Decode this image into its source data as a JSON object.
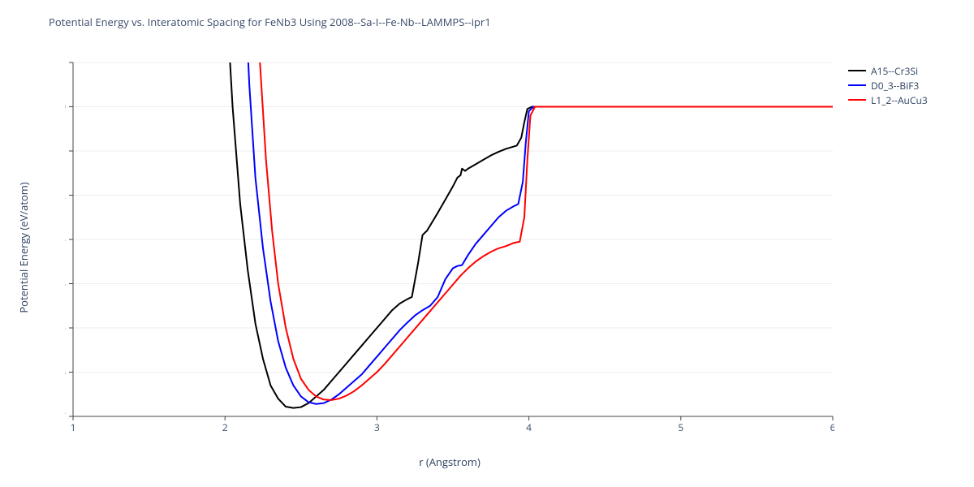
{
  "chart": {
    "title": "Potential Energy vs. Interatomic Spacing for FeNb3 Using 2008--Sa-I--Fe-Nb--LAMMPS--ipr1",
    "type": "line",
    "background_color": "#ffffff",
    "grid_color": "#eeeeee",
    "axis_line_color": "#444444",
    "title_fontsize": 13,
    "title_color": "#3a4c6b",
    "x": {
      "label": "r (Angstrom)",
      "min": 1,
      "max": 6,
      "tick_step": 1
    },
    "y": {
      "label": "Potential Energy (eV/atom)",
      "min": -7,
      "max": 1,
      "tick_step": 1
    },
    "series": [
      {
        "name": "A15--Cr3Si",
        "color": "#000000",
        "line_width": 2,
        "points": [
          [
            1.95,
            7.0
          ],
          [
            2.0,
            3.0
          ],
          [
            2.05,
            0.0
          ],
          [
            2.1,
            -2.2
          ],
          [
            2.15,
            -3.7
          ],
          [
            2.2,
            -4.9
          ],
          [
            2.25,
            -5.7
          ],
          [
            2.3,
            -6.3
          ],
          [
            2.35,
            -6.6
          ],
          [
            2.4,
            -6.78
          ],
          [
            2.45,
            -6.81
          ],
          [
            2.5,
            -6.79
          ],
          [
            2.55,
            -6.7
          ],
          [
            2.6,
            -6.55
          ],
          [
            2.65,
            -6.4
          ],
          [
            2.7,
            -6.2
          ],
          [
            2.75,
            -6.0
          ],
          [
            2.8,
            -5.8
          ],
          [
            2.85,
            -5.6
          ],
          [
            2.9,
            -5.4
          ],
          [
            2.95,
            -5.2
          ],
          [
            3.0,
            -5.0
          ],
          [
            3.05,
            -4.8
          ],
          [
            3.1,
            -4.6
          ],
          [
            3.15,
            -4.45
          ],
          [
            3.2,
            -4.35
          ],
          [
            3.23,
            -4.3
          ],
          [
            3.27,
            -3.55
          ],
          [
            3.3,
            -2.9
          ],
          [
            3.33,
            -2.8
          ],
          [
            3.4,
            -2.4
          ],
          [
            3.45,
            -2.1
          ],
          [
            3.5,
            -1.8
          ],
          [
            3.53,
            -1.6
          ],
          [
            3.55,
            -1.55
          ],
          [
            3.56,
            -1.4
          ],
          [
            3.58,
            -1.45
          ],
          [
            3.6,
            -1.4
          ],
          [
            3.65,
            -1.3
          ],
          [
            3.7,
            -1.2
          ],
          [
            3.75,
            -1.1
          ],
          [
            3.8,
            -1.02
          ],
          [
            3.85,
            -0.95
          ],
          [
            3.9,
            -0.9
          ],
          [
            3.92,
            -0.88
          ],
          [
            3.95,
            -0.7
          ],
          [
            3.97,
            -0.35
          ],
          [
            3.99,
            -0.05
          ],
          [
            4.02,
            0.0
          ],
          [
            4.2,
            0.0
          ],
          [
            4.5,
            0.0
          ],
          [
            5.0,
            0.0
          ],
          [
            5.5,
            0.0
          ],
          [
            6.0,
            0.0
          ]
        ]
      },
      {
        "name": "D0_3--BiF3",
        "color": "#0000ff",
        "line_width": 2,
        "points": [
          [
            2.08,
            7.0
          ],
          [
            2.12,
            3.5
          ],
          [
            2.16,
            0.5
          ],
          [
            2.2,
            -1.6
          ],
          [
            2.25,
            -3.2
          ],
          [
            2.3,
            -4.4
          ],
          [
            2.35,
            -5.3
          ],
          [
            2.4,
            -5.9
          ],
          [
            2.45,
            -6.3
          ],
          [
            2.5,
            -6.55
          ],
          [
            2.55,
            -6.68
          ],
          [
            2.6,
            -6.72
          ],
          [
            2.65,
            -6.7
          ],
          [
            2.7,
            -6.62
          ],
          [
            2.75,
            -6.5
          ],
          [
            2.8,
            -6.35
          ],
          [
            2.85,
            -6.2
          ],
          [
            2.9,
            -6.05
          ],
          [
            2.95,
            -5.85
          ],
          [
            3.0,
            -5.65
          ],
          [
            3.05,
            -5.45
          ],
          [
            3.1,
            -5.25
          ],
          [
            3.15,
            -5.05
          ],
          [
            3.2,
            -4.88
          ],
          [
            3.25,
            -4.72
          ],
          [
            3.3,
            -4.6
          ],
          [
            3.35,
            -4.5
          ],
          [
            3.4,
            -4.3
          ],
          [
            3.45,
            -3.9
          ],
          [
            3.5,
            -3.65
          ],
          [
            3.53,
            -3.6
          ],
          [
            3.56,
            -3.58
          ],
          [
            3.6,
            -3.35
          ],
          [
            3.65,
            -3.1
          ],
          [
            3.7,
            -2.9
          ],
          [
            3.75,
            -2.7
          ],
          [
            3.8,
            -2.5
          ],
          [
            3.85,
            -2.35
          ],
          [
            3.9,
            -2.25
          ],
          [
            3.93,
            -2.2
          ],
          [
            3.96,
            -1.7
          ],
          [
            3.98,
            -0.8
          ],
          [
            4.0,
            -0.1
          ],
          [
            4.03,
            0.0
          ],
          [
            4.2,
            0.0
          ],
          [
            4.5,
            0.0
          ],
          [
            5.0,
            0.0
          ],
          [
            5.5,
            0.0
          ],
          [
            6.0,
            0.0
          ]
        ]
      },
      {
        "name": "L1_2--AuCu3",
        "color": "#ff0000",
        "line_width": 2,
        "points": [
          [
            2.15,
            7.0
          ],
          [
            2.19,
            3.8
          ],
          [
            2.23,
            1.0
          ],
          [
            2.27,
            -1.2
          ],
          [
            2.31,
            -2.8
          ],
          [
            2.35,
            -4.0
          ],
          [
            2.4,
            -5.0
          ],
          [
            2.45,
            -5.7
          ],
          [
            2.5,
            -6.15
          ],
          [
            2.55,
            -6.4
          ],
          [
            2.6,
            -6.55
          ],
          [
            2.65,
            -6.62
          ],
          [
            2.7,
            -6.63
          ],
          [
            2.75,
            -6.6
          ],
          [
            2.8,
            -6.53
          ],
          [
            2.85,
            -6.43
          ],
          [
            2.9,
            -6.3
          ],
          [
            2.95,
            -6.15
          ],
          [
            3.0,
            -6.0
          ],
          [
            3.05,
            -5.82
          ],
          [
            3.1,
            -5.62
          ],
          [
            3.15,
            -5.42
          ],
          [
            3.2,
            -5.22
          ],
          [
            3.25,
            -5.02
          ],
          [
            3.3,
            -4.82
          ],
          [
            3.35,
            -4.62
          ],
          [
            3.4,
            -4.42
          ],
          [
            3.45,
            -4.22
          ],
          [
            3.5,
            -4.02
          ],
          [
            3.55,
            -3.82
          ],
          [
            3.6,
            -3.65
          ],
          [
            3.65,
            -3.5
          ],
          [
            3.7,
            -3.38
          ],
          [
            3.75,
            -3.28
          ],
          [
            3.8,
            -3.2
          ],
          [
            3.85,
            -3.15
          ],
          [
            3.9,
            -3.08
          ],
          [
            3.94,
            -3.05
          ],
          [
            3.97,
            -2.5
          ],
          [
            3.99,
            -1.2
          ],
          [
            4.01,
            -0.2
          ],
          [
            4.04,
            0.0
          ],
          [
            4.2,
            0.0
          ],
          [
            4.5,
            0.0
          ],
          [
            5.0,
            0.0
          ],
          [
            5.5,
            0.0
          ],
          [
            6.0,
            0.0
          ]
        ]
      }
    ],
    "legend": {
      "position": "right",
      "items": [
        {
          "label": "A15--Cr3Si",
          "color": "#000000"
        },
        {
          "label": "D0_3--BiF3",
          "color": "#0000ff"
        },
        {
          "label": "L1_2--AuCu3",
          "color": "#ff0000"
        }
      ]
    }
  }
}
